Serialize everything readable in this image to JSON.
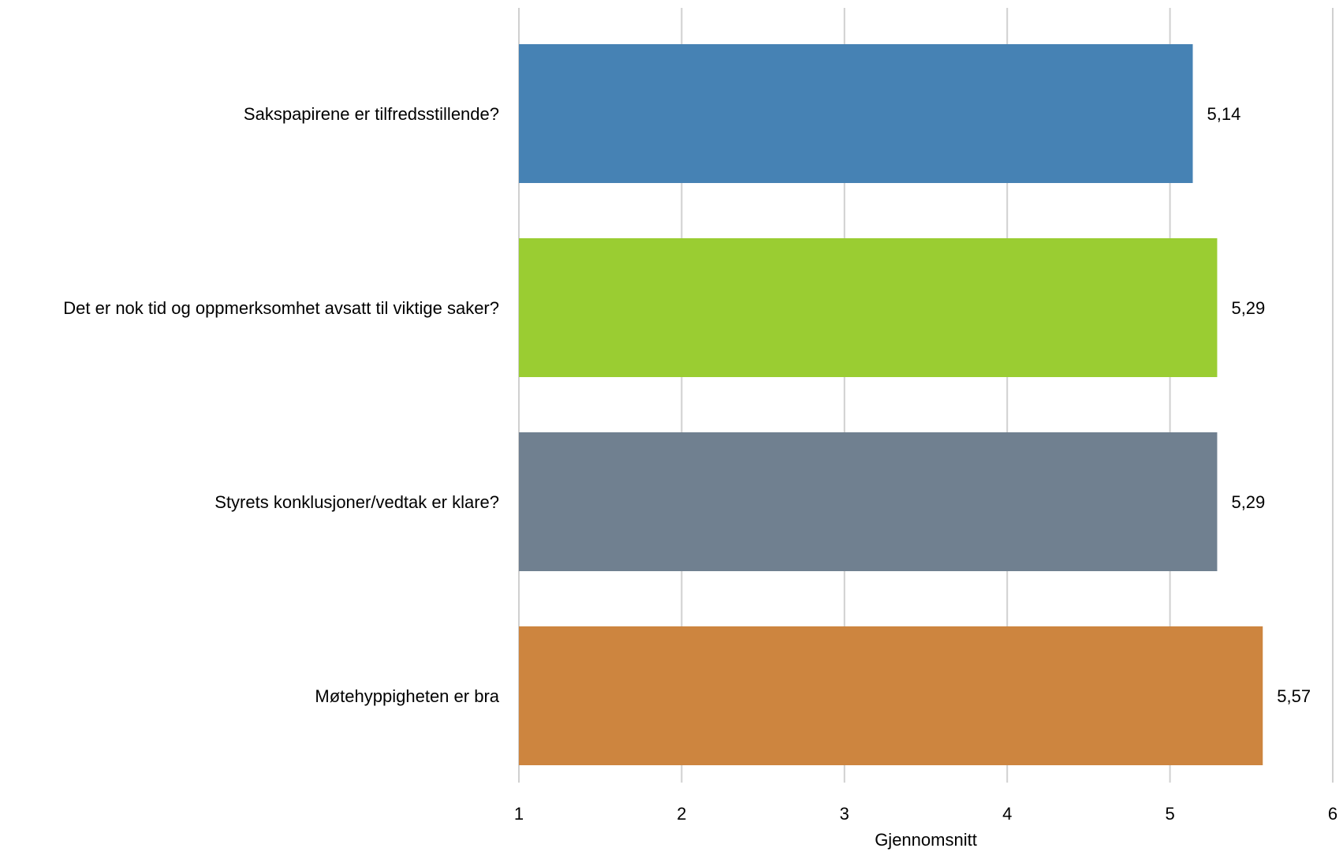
{
  "chart_data": {
    "type": "bar",
    "orientation": "horizontal",
    "categories": [
      "Sakspapirene er tilfredsstillende?",
      "Det er nok tid og oppmerksomhet avsatt til viktige saker?",
      "Styrets konklusjoner/vedtak er klare?",
      "Møtehyppigheten er bra"
    ],
    "values": [
      5.14,
      5.29,
      5.29,
      5.57
    ],
    "data_labels": [
      "5,14",
      "5,29",
      "5,29",
      "5,57"
    ],
    "colors": [
      "#4682b4",
      "#9acd32",
      "#708090",
      "#cd853f"
    ],
    "xlim": [
      1,
      6
    ],
    "x_ticks": [
      1,
      2,
      3,
      4,
      5,
      6
    ],
    "x_tick_labels": [
      "1",
      "2",
      "3",
      "4",
      "5",
      "6"
    ],
    "xlabel": "Gjennomsnitt",
    "ylabel": "",
    "title": "",
    "grid": true,
    "legend": "none",
    "gridline_color": "#d0d0d0"
  }
}
